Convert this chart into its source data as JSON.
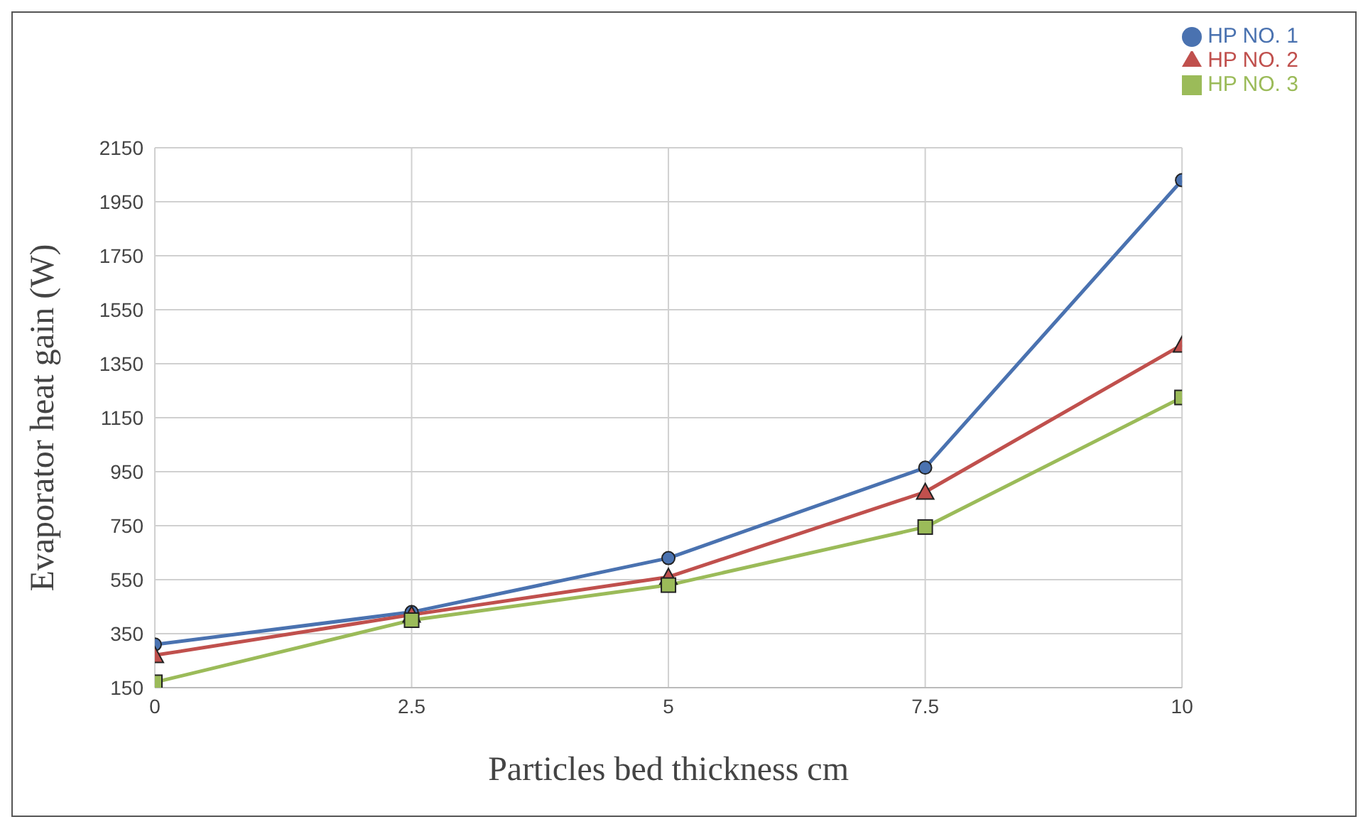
{
  "chart_data": {
    "type": "line",
    "xlabel": "Particles bed thickness cm",
    "ylabel": "Evaporator heat gain (W)",
    "x": [
      0,
      2.5,
      5,
      7.5,
      10
    ],
    "series": [
      {
        "name": "HP NO. 1",
        "color": "#4a72b0",
        "marker": "circle",
        "values": [
          310,
          430,
          630,
          965,
          2030
        ]
      },
      {
        "name": "HP NO. 2",
        "color": "#c0504d",
        "marker": "triangle",
        "values": [
          270,
          420,
          560,
          875,
          1420
        ]
      },
      {
        "name": "HP NO. 3",
        "color": "#9bbb59",
        "marker": "square",
        "values": [
          170,
          400,
          530,
          745,
          1225
        ]
      }
    ],
    "xlim": [
      0,
      10
    ],
    "xticks": [
      0,
      2.5,
      5,
      7.5,
      10
    ],
    "ylim": [
      150,
      2150
    ],
    "yticks": [
      150,
      350,
      550,
      750,
      950,
      1150,
      1350,
      1550,
      1750,
      1950,
      2150
    ],
    "grid": true,
    "legend": "top right"
  }
}
